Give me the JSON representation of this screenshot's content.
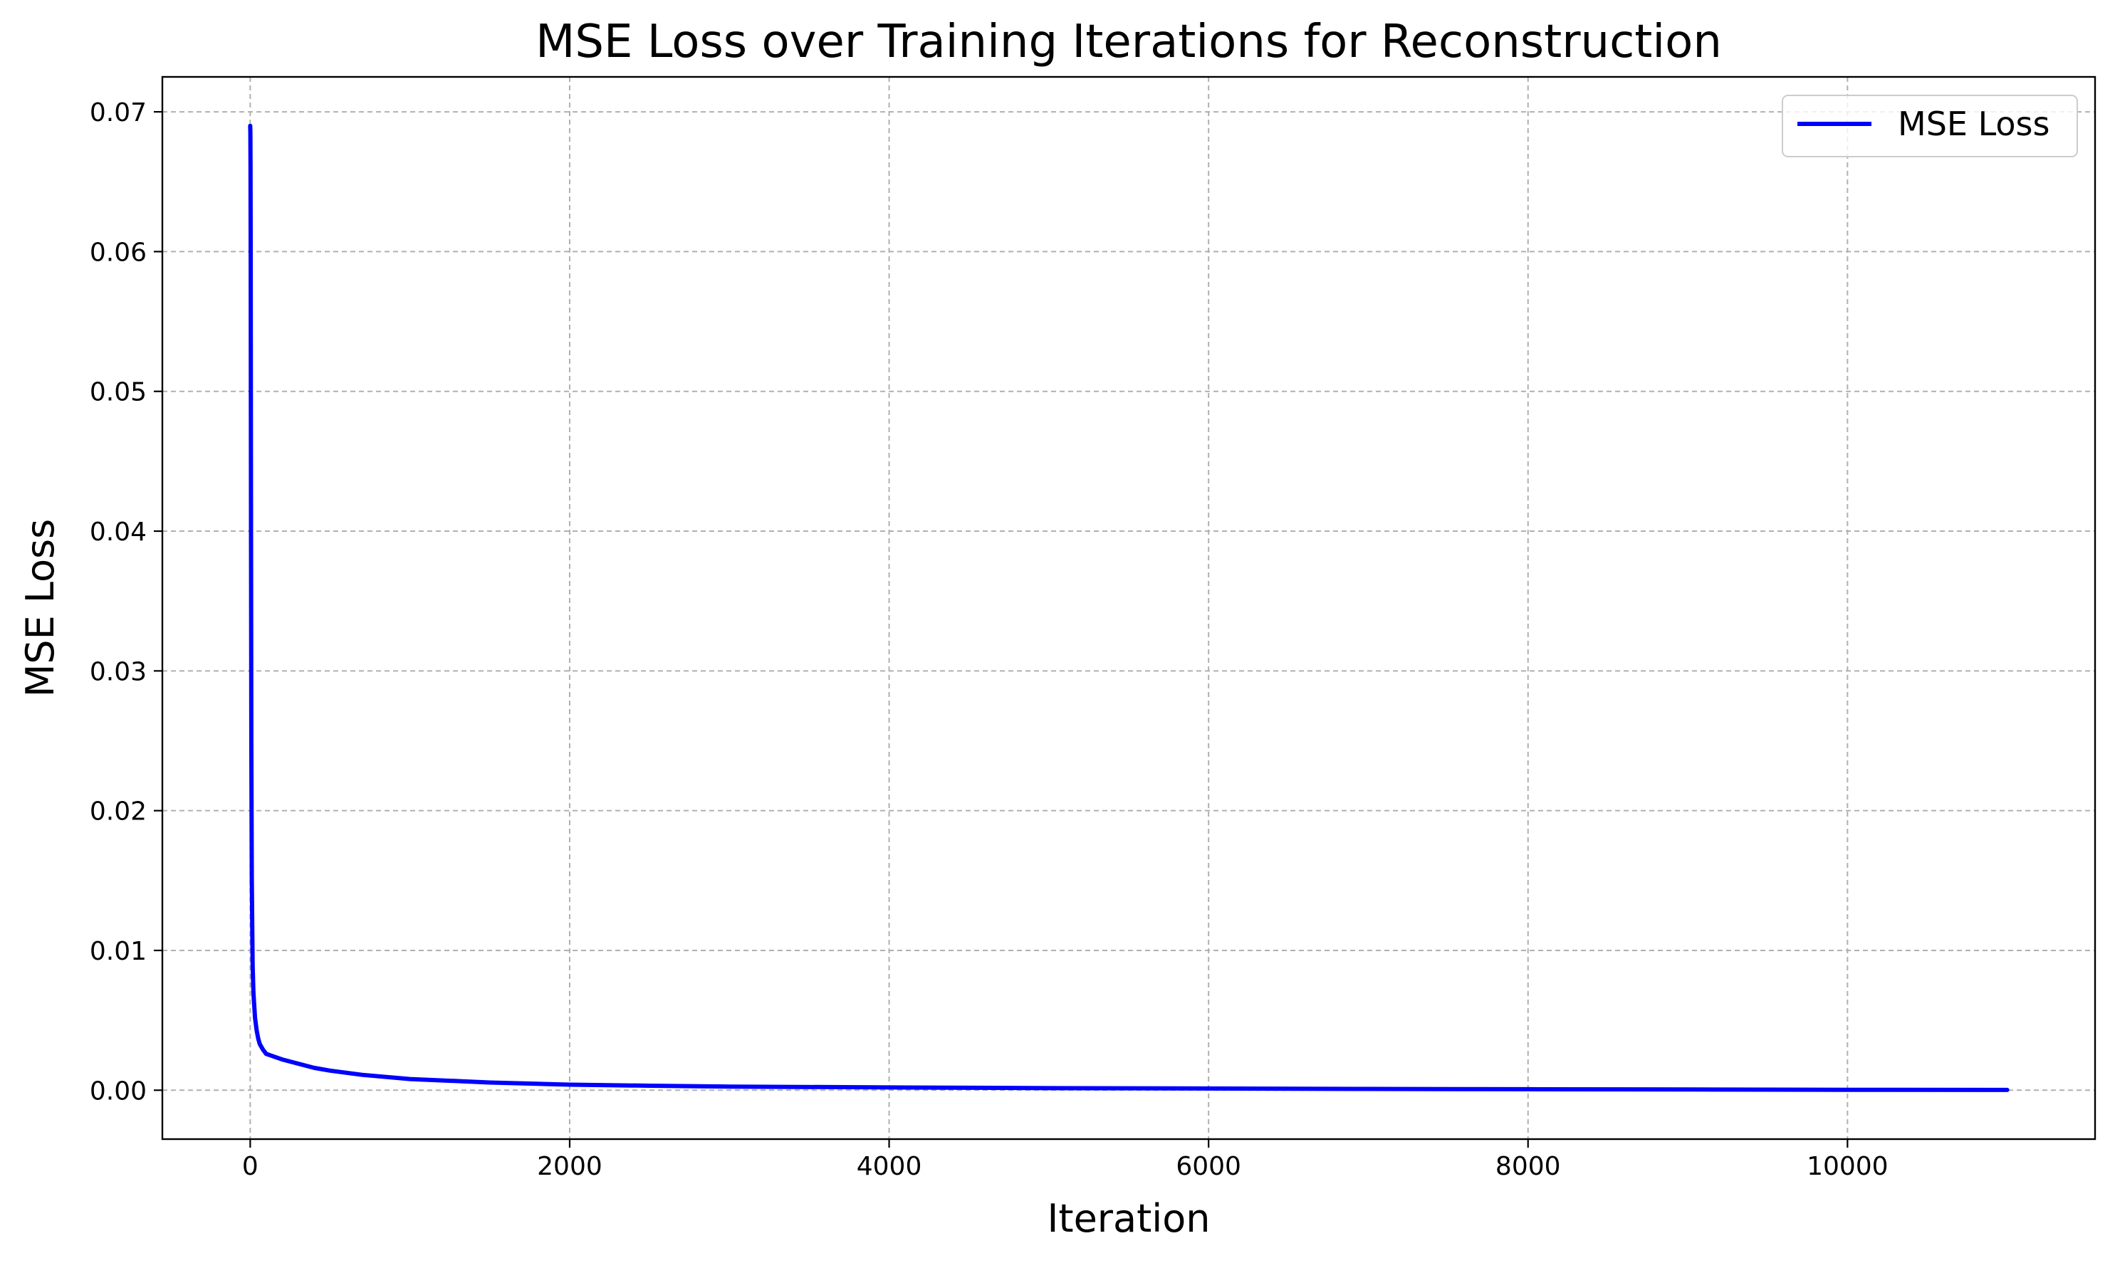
{
  "chart_data": {
    "type": "line",
    "title": "MSE Loss over Training Iterations for Reconstruction",
    "xlabel": "Iteration",
    "ylabel": "MSE Loss",
    "xlim": [
      -550,
      11550
    ],
    "ylim": [
      -0.0035,
      0.0725
    ],
    "xticks": [
      0,
      2000,
      4000,
      6000,
      8000,
      10000
    ],
    "xtick_labels": [
      "0",
      "2000",
      "4000",
      "6000",
      "8000",
      "10000"
    ],
    "yticks": [
      0.0,
      0.01,
      0.02,
      0.03,
      0.04,
      0.05,
      0.06,
      0.07
    ],
    "ytick_labels": [
      "0.00",
      "0.01",
      "0.02",
      "0.03",
      "0.04",
      "0.05",
      "0.06",
      "0.07"
    ],
    "grid": true,
    "legend_position": "top-right",
    "series": [
      {
        "name": "MSE Loss",
        "color": "#0000ff",
        "x": [
          0,
          1,
          2,
          3,
          4,
          5,
          7,
          10,
          15,
          20,
          30,
          40,
          50,
          60,
          80,
          100,
          150,
          200,
          300,
          400,
          500,
          700,
          1000,
          1500,
          2000,
          2500,
          3000,
          4000,
          5000,
          6000,
          7000,
          8000,
          9000,
          10000,
          11000
        ],
        "y": [
          0.069,
          0.0685,
          0.066,
          0.06,
          0.05,
          0.04,
          0.025,
          0.015,
          0.009,
          0.007,
          0.0052,
          0.0043,
          0.0037,
          0.0033,
          0.0029,
          0.0026,
          0.0024,
          0.0022,
          0.0019,
          0.0016,
          0.0014,
          0.0011,
          0.0008,
          0.00055,
          0.0004,
          0.00032,
          0.00026,
          0.0002,
          0.00015,
          0.00012,
          9e-05,
          7e-05,
          5e-05,
          3e-05,
          2e-05
        ]
      }
    ]
  }
}
